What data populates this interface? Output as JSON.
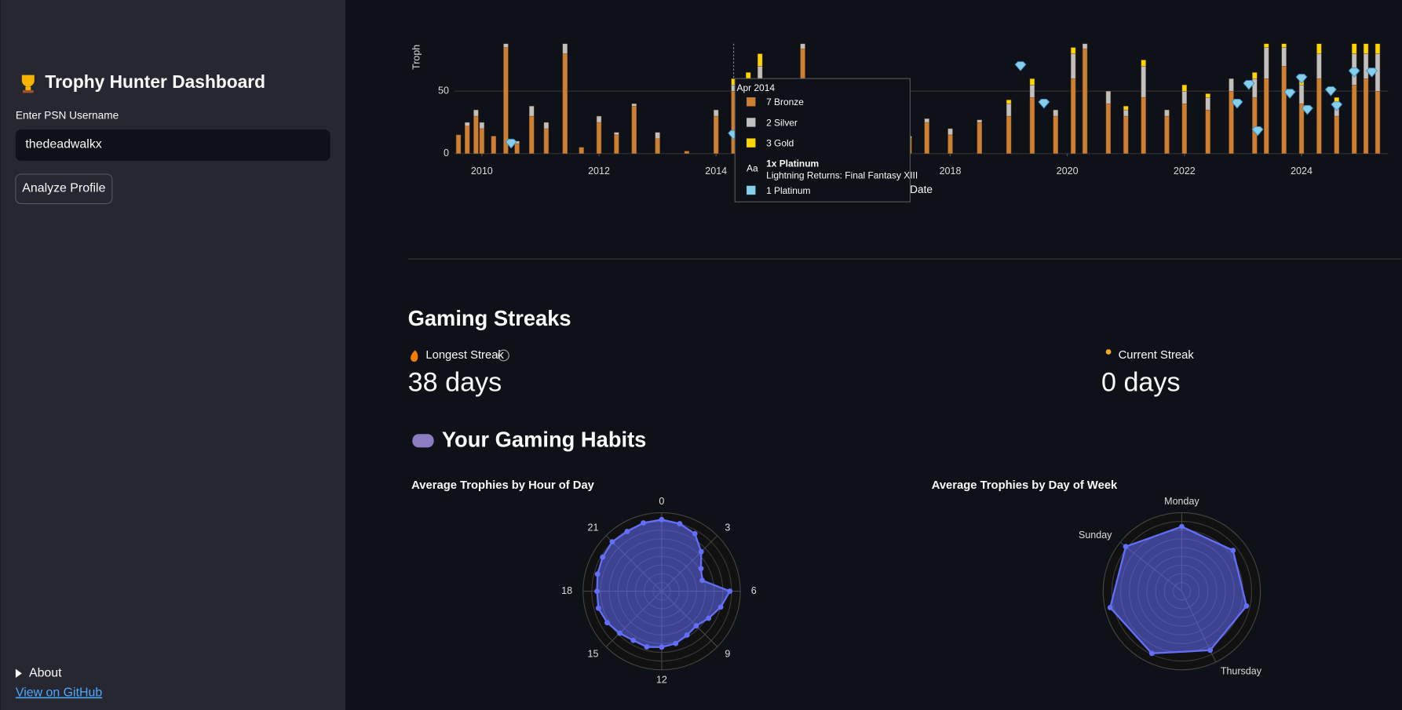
{
  "sidebar": {
    "title": "Trophy Hunter Dashboard",
    "input_label": "Enter PSN Username",
    "input_value": "thedeadwalkx",
    "button": "Analyze Profile",
    "about": "About",
    "link": "View on GitHub"
  },
  "tooltip": {
    "date": "Apr 2014",
    "items": [
      "7 Bronze",
      "2 Silver",
      "3 Gold",
      "1 Platinum"
    ],
    "marker": "Aa",
    "headline": "1x Platinum",
    "game": "Lightning Returns: Final Fantasy XIII"
  },
  "streaks": {
    "title": "Gaming Streaks",
    "longest_label": "Longest Streak",
    "longest_value": "38 days",
    "current_label": "Current Streak",
    "current_value": "0 days"
  },
  "habits": {
    "title": "Your Gaming Habits"
  },
  "chart_data": [
    {
      "type": "bar",
      "ylabel": "Troph",
      "xlabel": "Date",
      "xlim": [
        2009.53,
        2025.48
      ],
      "ylim": [
        0,
        88
      ],
      "xticks": [
        2010,
        2012,
        2014,
        2016,
        2018,
        2020,
        2022,
        2024
      ],
      "yticks": [
        0,
        50
      ],
      "grid": true,
      "x": [
        2009.6,
        2009.75,
        2009.9,
        2010.0,
        2010.2,
        2010.41,
        2010.6,
        2010.85,
        2011.1,
        2011.42,
        2011.7,
        2012.0,
        2012.3,
        2012.6,
        2013.0,
        2013.5,
        2014.0,
        2014.3,
        2014.55,
        2014.75,
        2015.48,
        2017.0,
        2017.3,
        2017.6,
        2018.0,
        2018.5,
        2019.0,
        2019.4,
        2019.8,
        2020.1,
        2020.3,
        2020.7,
        2021.0,
        2021.3,
        2021.7,
        2022.0,
        2022.4,
        2022.8,
        2023.2,
        2023.4,
        2023.7,
        2024.0,
        2024.3,
        2024.6,
        2024.9,
        2025.1,
        2025.3
      ],
      "series": [
        {
          "name": "Bronze",
          "color": "#cd7f32",
          "values": [
            15,
            22,
            30,
            20,
            14,
            85,
            8,
            30,
            20,
            80,
            5,
            25,
            15,
            38,
            12,
            2,
            30,
            50,
            45,
            55,
            84,
            20,
            12,
            25,
            15,
            25,
            30,
            45,
            30,
            60,
            84,
            40,
            30,
            45,
            30,
            40,
            35,
            50,
            45,
            60,
            70,
            40,
            60,
            30,
            55,
            60,
            50
          ]
        },
        {
          "name": "Silver",
          "color": "#c0c0c0",
          "values": [
            0,
            3,
            5,
            5,
            0,
            3,
            2,
            8,
            5,
            8,
            0,
            5,
            2,
            2,
            5,
            0,
            5,
            5,
            15,
            15,
            4,
            3,
            2,
            3,
            5,
            2,
            10,
            10,
            5,
            20,
            4,
            10,
            5,
            25,
            5,
            10,
            10,
            10,
            15,
            25,
            15,
            15,
            20,
            10,
            25,
            20,
            30
          ]
        },
        {
          "name": "Gold",
          "color": "#ffd700",
          "values": [
            0,
            0,
            0,
            0,
            0,
            0,
            0,
            0,
            0,
            0,
            0,
            0,
            0,
            0,
            0,
            0,
            0,
            5,
            5,
            10,
            0,
            0,
            0,
            0,
            0,
            0,
            3,
            5,
            0,
            5,
            0,
            0,
            3,
            5,
            0,
            5,
            3,
            0,
            5,
            3,
            3,
            5,
            8,
            5,
            8,
            8,
            8
          ]
        }
      ],
      "platinum": {
        "name": "Platinum",
        "color": "#87ceeb",
        "x": [
          2010.5,
          2014.3,
          2019.2,
          2019.6,
          2022.9,
          2023.1,
          2023.25,
          2023.8,
          2024.0,
          2024.1,
          2024.5,
          2024.6,
          2024.9,
          2025.2
        ],
        "values": [
          8,
          15,
          70,
          40,
          40,
          55,
          18,
          48,
          60,
          35,
          50,
          38,
          65,
          65
        ]
      }
    },
    {
      "type": "radar",
      "title": "Average Trophies by Hour of Day",
      "rlim": [
        0,
        90
      ],
      "color": "#636efa",
      "categories": [
        "0",
        null,
        null,
        "3",
        null,
        null,
        "6",
        null,
        null,
        "9",
        null,
        null,
        "12",
        null,
        null,
        "15",
        null,
        null,
        "18",
        null,
        null,
        "21",
        null,
        null
      ],
      "values": [
        82,
        80,
        76,
        64,
        52,
        48,
        78,
        70,
        62,
        56,
        58,
        62,
        64,
        66,
        65,
        68,
        72,
        75,
        74,
        76,
        78,
        80,
        79,
        81
      ]
    },
    {
      "type": "radar",
      "title": "Average Trophies by Day of Week",
      "rlim": [
        0,
        90
      ],
      "color": "#636efa",
      "categories": [
        "Monday",
        null,
        null,
        "Thursday",
        null,
        null,
        "Sunday"
      ],
      "values": [
        74,
        75,
        76,
        75,
        79,
        84,
        82
      ]
    }
  ]
}
